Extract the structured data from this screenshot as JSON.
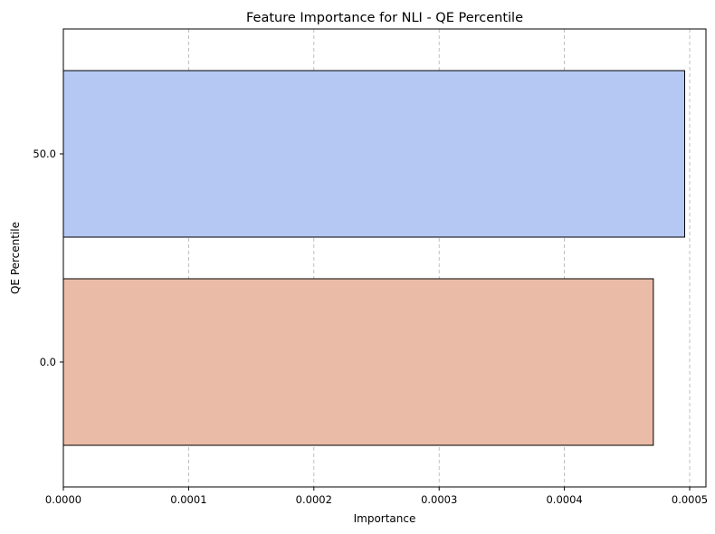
{
  "chart_data": {
    "type": "bar",
    "orientation": "horizontal",
    "title": "Feature Importance for NLI - QE Percentile",
    "xlabel": "Importance",
    "ylabel": "QE Percentile",
    "categories": [
      "50.0",
      "0.0"
    ],
    "values": [
      0.000496,
      0.000471
    ],
    "colors": [
      "#b5c8f3",
      "#eabba6"
    ],
    "xlim": [
      0,
      0.000513
    ],
    "xticks": [
      0,
      0.0001,
      0.0002,
      0.0003,
      0.0004,
      0.0005
    ],
    "xtick_labels": [
      "0.0000",
      "0.0001",
      "0.0002",
      "0.0003",
      "0.0004",
      "0.0005"
    ],
    "grid": {
      "x": true,
      "y": false,
      "style": "dashed"
    },
    "legend": "none"
  }
}
